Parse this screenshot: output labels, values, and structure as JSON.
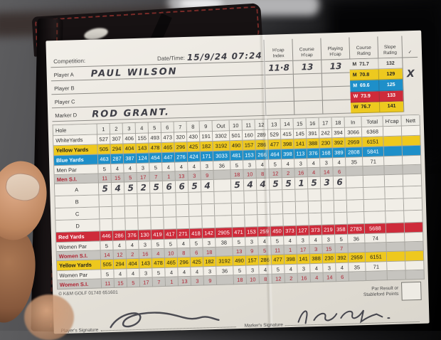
{
  "header": {
    "competition_label": "Competition:",
    "datetime_label": "Date/Time:",
    "datetime_value": "15/9/24  07:24",
    "col_headers": [
      {
        "l1": "H'cap",
        "l2": "Index"
      },
      {
        "l1": "Course",
        "l2": "H'cap"
      },
      {
        "l1": "Playing",
        "l2": "H'cap"
      },
      {
        "l1": "Course",
        "l2": "Rating"
      },
      {
        "l1": "Slope",
        "l2": "Rating"
      },
      {
        "l1": "✓",
        "l2": ""
      }
    ],
    "players": [
      {
        "label": "Player A",
        "name": "PAUL WILSON"
      },
      {
        "label": "Player B",
        "name": ""
      },
      {
        "label": "Player C",
        "name": ""
      },
      {
        "label": "Marker D",
        "name": "ROD GRANT."
      }
    ],
    "hcap_values": [
      "11·8",
      "13",
      "13"
    ],
    "ratings": [
      {
        "tee": "M",
        "rating": "71.7",
        "slope": "132",
        "style": "plain",
        "check": ""
      },
      {
        "tee": "M",
        "rating": "70.8",
        "slope": "129",
        "style": "yellow",
        "check": "X"
      },
      {
        "tee": "M",
        "rating": "69.6",
        "slope": "125",
        "style": "blue",
        "check": ""
      },
      {
        "tee": "W",
        "rating": "73.9",
        "slope": "133",
        "style": "red",
        "check": ""
      },
      {
        "tee": "W",
        "rating": "76.7",
        "slope": "141",
        "style": "yellow",
        "check": ""
      }
    ]
  },
  "grid": {
    "rows": [
      {
        "label": "Hole",
        "style": "hole",
        "hand": false,
        "cells": [
          "1",
          "2",
          "3",
          "4",
          "5",
          "6",
          "7",
          "8",
          "9",
          "Out",
          "10",
          "11",
          "12",
          "13",
          "14",
          "15",
          "16",
          "17",
          "18",
          "In",
          "Total",
          "H'cap",
          "Nett"
        ]
      },
      {
        "label": "WhiteYards",
        "style": "white",
        "hand": false,
        "cells": [
          "527",
          "307",
          "406",
          "155",
          "493",
          "473",
          "320",
          "430",
          "191",
          "3302",
          "501",
          "160",
          "289",
          "529",
          "415",
          "145",
          "391",
          "242",
          "394",
          "3066",
          "6368",
          "",
          ""
        ]
      },
      {
        "label": "Yellow Yards",
        "style": "yellow",
        "hand": false,
        "cells": [
          "505",
          "294",
          "404",
          "143",
          "478",
          "465",
          "296",
          "425",
          "182",
          "3192",
          "490",
          "157",
          "286",
          "477",
          "398",
          "141",
          "388",
          "230",
          "392",
          "2959",
          "6151",
          "",
          ""
        ]
      },
      {
        "label": "Blue Yards",
        "style": "blue",
        "hand": false,
        "cells": [
          "463",
          "287",
          "387",
          "124",
          "454",
          "447",
          "276",
          "424",
          "171",
          "3033",
          "481",
          "153",
          "266",
          "464",
          "398",
          "113",
          "376",
          "168",
          "389",
          "2808",
          "5841",
          "",
          ""
        ]
      },
      {
        "label": "Men Par",
        "style": "par",
        "hand": false,
        "cells": [
          "5",
          "4",
          "4",
          "3",
          "5",
          "4",
          "4",
          "4",
          "3",
          "36",
          "5",
          "3",
          "4",
          "5",
          "4",
          "3",
          "4",
          "3",
          "4",
          "35",
          "71",
          "",
          ""
        ]
      },
      {
        "label": "Men S.I.",
        "style": "si",
        "hand": false,
        "cells": [
          "11",
          "15",
          "5",
          "17",
          "7",
          "1",
          "13",
          "3",
          "9",
          "",
          "18",
          "10",
          "8",
          "12",
          "2",
          "16",
          "4",
          "14",
          "6",
          "",
          "",
          "",
          ""
        ]
      },
      {
        "label": "A",
        "style": "score",
        "hand": true,
        "cells": [
          "5",
          "4",
          "5",
          "2",
          "5",
          "6",
          "6",
          "5",
          "4",
          "",
          "5",
          "4",
          "4",
          "5",
          "5",
          "1",
          "5",
          "3",
          "6",
          "",
          "",
          "",
          ""
        ]
      },
      {
        "label": "B",
        "style": "score",
        "hand": true,
        "cells": [
          "",
          "",
          "",
          "",
          "",
          "",
          "",
          "",
          "",
          "",
          "",
          "",
          "",
          "",
          "",
          "",
          "",
          "",
          "",
          "",
          "",
          "",
          ""
        ]
      },
      {
        "label": "C",
        "style": "score",
        "hand": true,
        "cells": [
          "",
          "",
          "",
          "",
          "",
          "",
          "",
          "",
          "",
          "",
          "",
          "",
          "",
          "",
          "",
          "",
          "",
          "",
          "",
          "",
          "",
          "",
          ""
        ]
      },
      {
        "label": "D",
        "style": "score",
        "hand": true,
        "cells": [
          "",
          "",
          "",
          "",
          "",
          "",
          "",
          "",
          "",
          "",
          "",
          "",
          "",
          "",
          "",
          "",
          "",
          "",
          "",
          "",
          "",
          "",
          ""
        ]
      },
      {
        "label": "Red Yards",
        "style": "red",
        "hand": false,
        "cells": [
          "446",
          "286",
          "376",
          "130",
          "419",
          "417",
          "271",
          "418",
          "142",
          "2905",
          "471",
          "153",
          "259",
          "450",
          "373",
          "127",
          "373",
          "219",
          "358",
          "2783",
          "5688",
          "",
          ""
        ]
      },
      {
        "label": "Women Par",
        "style": "par",
        "hand": false,
        "cells": [
          "5",
          "4",
          "4",
          "3",
          "5",
          "5",
          "4",
          "5",
          "3",
          "38",
          "5",
          "3",
          "4",
          "5",
          "4",
          "3",
          "4",
          "3",
          "5",
          "36",
          "74",
          "",
          ""
        ]
      },
      {
        "label": "Women S.I.",
        "style": "si",
        "hand": false,
        "cells": [
          "14",
          "12",
          "2",
          "16",
          "4",
          "10",
          "8",
          "6",
          "18",
          "",
          "13",
          "9",
          "5",
          "11",
          "1",
          "17",
          "3",
          "15",
          "7",
          "",
          "",
          "",
          ""
        ]
      },
      {
        "label": "Yellow Yards",
        "style": "yellow",
        "hand": false,
        "cells": [
          "505",
          "294",
          "404",
          "143",
          "478",
          "465",
          "296",
          "425",
          "182",
          "3192",
          "490",
          "157",
          "286",
          "477",
          "398",
          "141",
          "388",
          "230",
          "392",
          "2959",
          "6151",
          "",
          ""
        ]
      },
      {
        "label": "Women Par",
        "style": "par",
        "hand": false,
        "cells": [
          "5",
          "4",
          "4",
          "3",
          "5",
          "4",
          "4",
          "4",
          "3",
          "36",
          "5",
          "3",
          "4",
          "5",
          "4",
          "3",
          "4",
          "3",
          "4",
          "35",
          "71",
          "",
          ""
        ]
      },
      {
        "label": "Women S.I.",
        "style": "si",
        "hand": false,
        "cells": [
          "11",
          "15",
          "5",
          "17",
          "7",
          "1",
          "13",
          "3",
          "9",
          "",
          "18",
          "10",
          "8",
          "12",
          "2",
          "16",
          "4",
          "14",
          "6",
          "",
          "",
          "",
          ""
        ]
      }
    ]
  },
  "footer": {
    "copyright": "© K&M GOLF 01740 651601",
    "par_result_label": "Par Result or Stableford Points",
    "player_signature_label": "Player's Signature",
    "marker_signature_label": "Marker's Signature"
  },
  "colors": {
    "yellow_tee": "#edc91f",
    "blue_tee": "#1e8fc9",
    "red_tee": "#ce2b3a",
    "si_text": "#b02433",
    "paper": "#efece6"
  }
}
